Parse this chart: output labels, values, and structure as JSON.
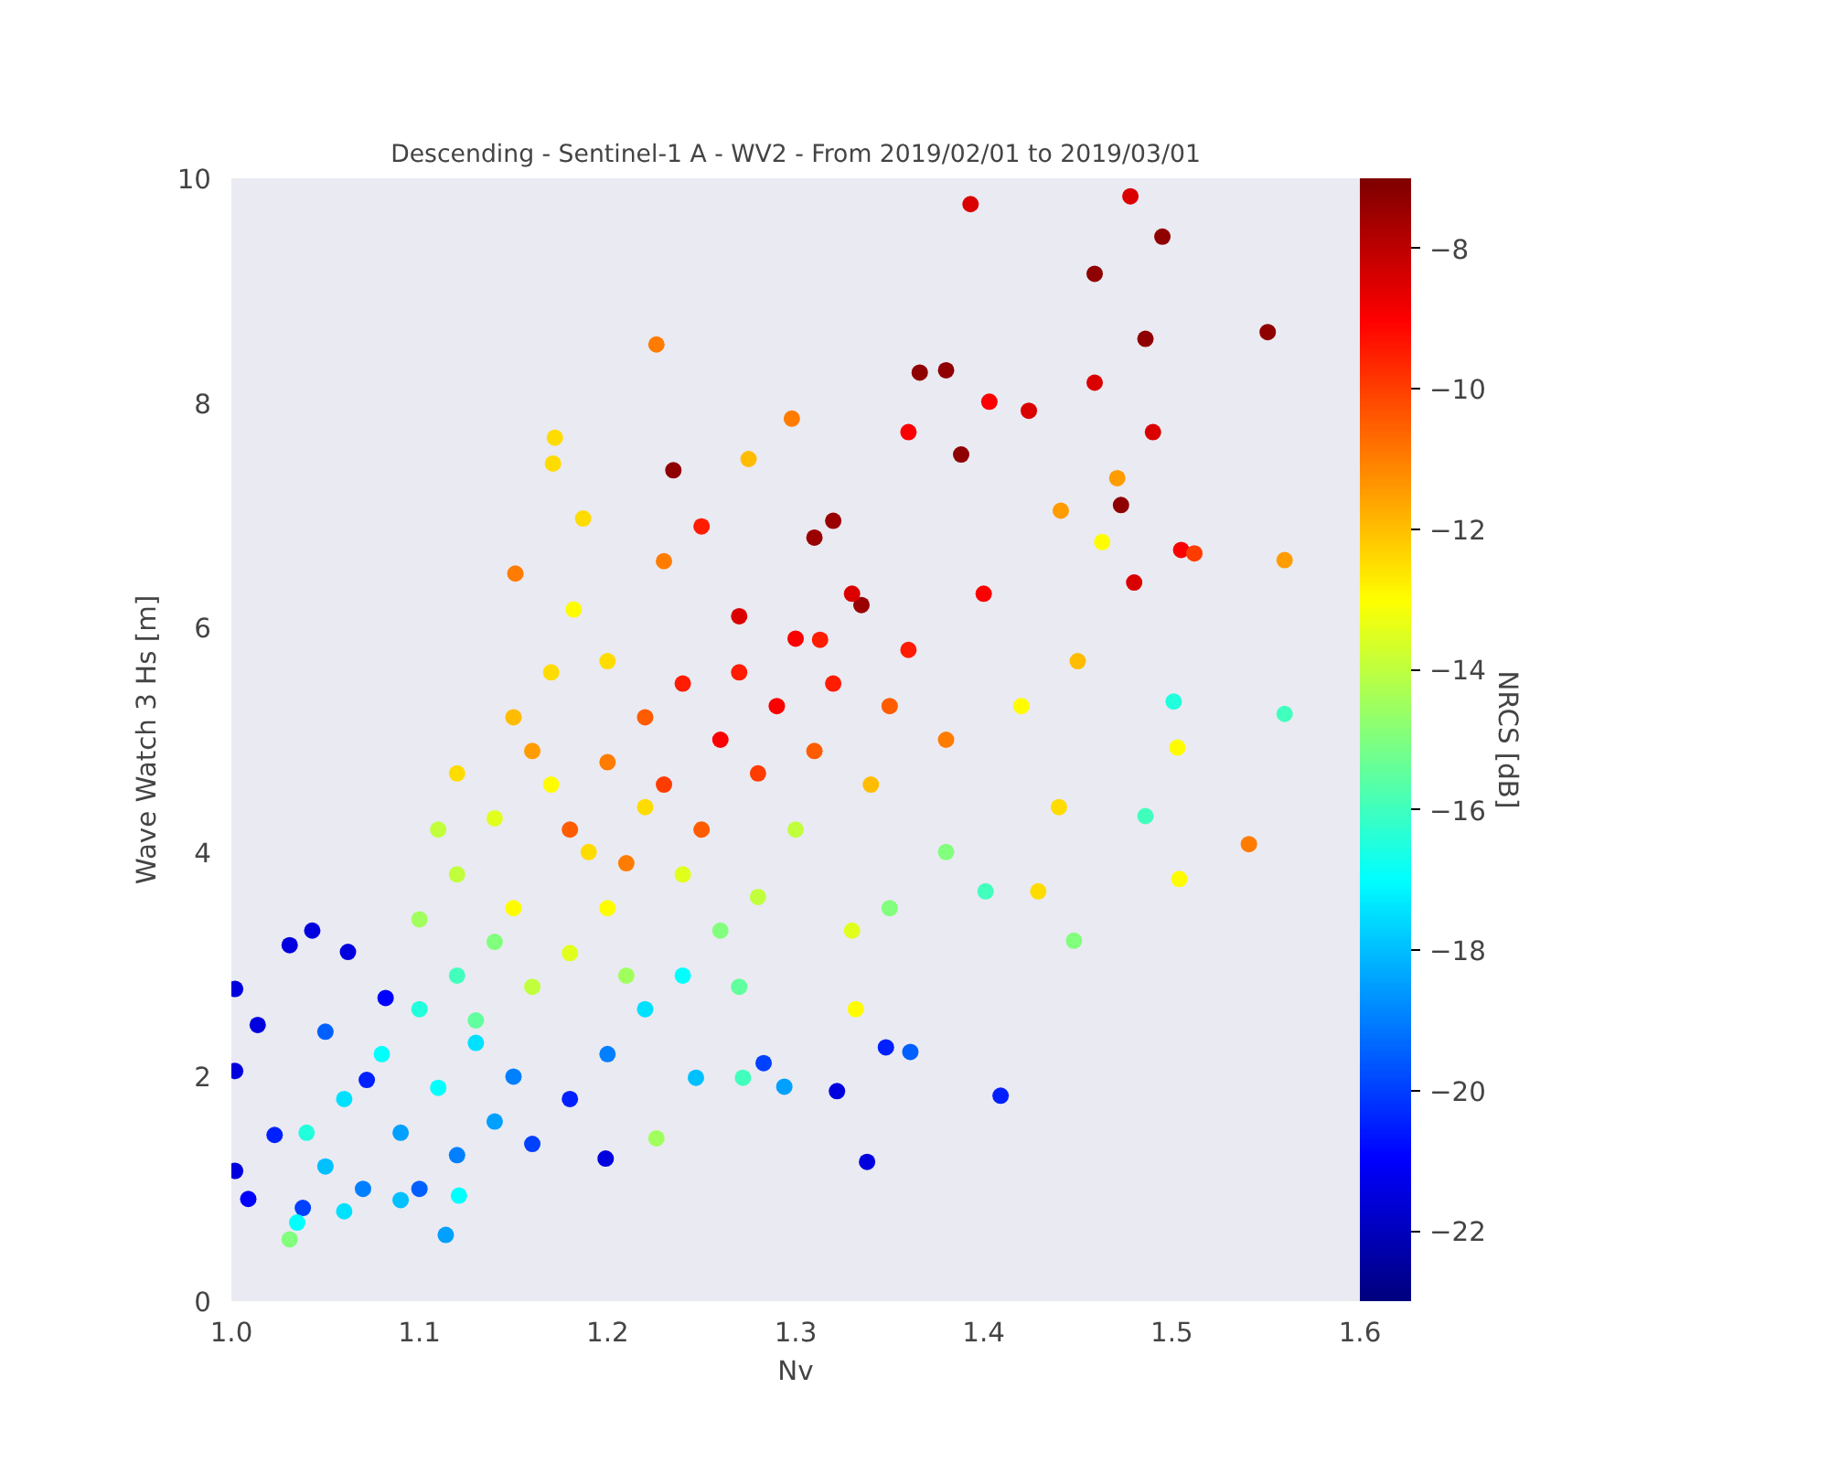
{
  "chart_data": {
    "type": "scatter",
    "title": "Descending - Sentinel-1 A - WV2 - From 2019/02/01 to 2019/03/01",
    "xlabel": "Nv",
    "ylabel": "Wave Watch 3 Hs [m]",
    "clabel": "NRCS [dB]",
    "xlim": [
      1.0,
      1.6
    ],
    "ylim": [
      0,
      10
    ],
    "xticks": [
      {
        "value": 1.0,
        "label": "1.0"
      },
      1.1,
      1.2,
      1.3,
      1.4,
      1.5,
      {
        "value": 1.6,
        "label": "1.6"
      }
    ],
    "yticks": [
      0,
      2,
      4,
      6,
      8,
      10
    ],
    "clim": [
      -23,
      -7
    ],
    "cticks": [
      {
        "value": -22,
        "label": "−22"
      },
      {
        "value": -20,
        "label": "−20"
      },
      {
        "value": -18,
        "label": "−18"
      },
      {
        "value": -16,
        "label": "−16"
      },
      {
        "value": -14,
        "label": "−14"
      },
      {
        "value": -12,
        "label": "−12"
      },
      {
        "value": -10,
        "label": "−10"
      },
      {
        "value": -8,
        "label": "−8"
      }
    ],
    "marker": "circle",
    "grid": false,
    "x": [
      1.393,
      1.478,
      1.495,
      1.459,
      1.486,
      1.551,
      1.226,
      1.459,
      1.49,
      1.366,
      1.38,
      1.403,
      1.388,
      1.424,
      1.473,
      1.235,
      1.172,
      1.171,
      1.298,
      1.36,
      1.275,
      1.471,
      1.441,
      1.505,
      1.512,
      1.56,
      1.187,
      1.151,
      1.23,
      1.182,
      1.313,
      1.463,
      1.335,
      1.541,
      1.504,
      1.486,
      1.448,
      1.409,
      1.338,
      1.361,
      1.348,
      1.322,
      1.294,
      1.283,
      1.272,
      1.247,
      1.199,
      1.226,
      1.121,
      1.114,
      1.031,
      1.503,
      1.429,
      1.401,
      1.332,
      1.56,
      1.501,
      1.002,
      1.002,
      1.002,
      1.014,
      1.031,
      1.043,
      1.062,
      1.009,
      1.023,
      1.038,
      1.072,
      1.082,
      1.05,
      1.06,
      1.07,
      1.08,
      1.09,
      1.1,
      1.1,
      1.11,
      1.12,
      1.12,
      1.13,
      1.14,
      1.15,
      1.16,
      1.18,
      1.2,
      1.22,
      1.24,
      1.06,
      1.04,
      1.035,
      1.09,
      1.05,
      1.14,
      1.1,
      1.12,
      1.14,
      1.15,
      1.16,
      1.17,
      1.18,
      1.19,
      1.2,
      1.21,
      1.13,
      1.22,
      1.24,
      1.26,
      1.28,
      1.3,
      1.27,
      1.12,
      1.15,
      1.17,
      1.2,
      1.11,
      1.2,
      1.22,
      1.23,
      1.24,
      1.25,
      1.26,
      1.27,
      1.28,
      1.29,
      1.3,
      1.31,
      1.32,
      1.33,
      1.35,
      1.34,
      1.36,
      1.38,
      1.4,
      1.42,
      1.45,
      1.48,
      1.44,
      1.38,
      1.33,
      1.35,
      1.31,
      1.32,
      1.27,
      1.25,
      1.18,
      1.21,
      1.16
    ],
    "values": [
      9.77,
      9.84,
      9.48,
      9.15,
      8.57,
      8.63,
      8.52,
      8.18,
      7.74,
      8.27,
      8.29,
      8.01,
      7.54,
      7.93,
      7.09,
      7.4,
      7.69,
      7.46,
      7.86,
      7.74,
      7.5,
      7.33,
      7.04,
      6.69,
      6.66,
      6.6,
      6.97,
      6.48,
      6.59,
      6.16,
      5.89,
      6.76,
      6.2,
      4.07,
      3.76,
      4.32,
      3.21,
      1.83,
      1.24,
      2.22,
      2.26,
      1.87,
      1.91,
      2.12,
      1.99,
      1.99,
      1.27,
      1.45,
      0.94,
      0.59,
      0.55,
      4.93,
      3.65,
      3.65,
      2.6,
      5.23,
      5.34,
      1.16,
      2.05,
      2.78,
      2.46,
      3.17,
      3.3,
      3.11,
      0.91,
      1.48,
      0.83,
      1.97,
      2.7,
      1.2,
      1.8,
      1.0,
      2.2,
      1.5,
      2.6,
      1.0,
      1.9,
      1.3,
      2.9,
      2.3,
      1.6,
      2.0,
      1.4,
      1.8,
      2.2,
      2.6,
      2.9,
      0.8,
      1.5,
      0.7,
      0.9,
      2.4,
      3.2,
      3.4,
      3.8,
      4.3,
      3.5,
      2.8,
      4.6,
      3.1,
      4.0,
      3.5,
      2.9,
      2.5,
      4.4,
      3.8,
      3.3,
      3.6,
      4.2,
      2.8,
      4.7,
      5.2,
      5.6,
      5.7,
      4.2,
      4.8,
      5.2,
      4.6,
      5.5,
      4.2,
      5.0,
      5.6,
      4.7,
      5.3,
      5.9,
      4.9,
      5.5,
      6.3,
      5.3,
      4.6,
      5.8,
      5.0,
      6.3,
      5.3,
      5.7,
      6.4,
      4.4,
      4.0,
      3.3,
      3.5,
      6.8,
      6.95,
      6.1,
      6.9,
      4.2,
      3.9,
      4.9
    ],
    "cvalues": [
      -8.5,
      -8.5,
      -7.3,
      -7.3,
      -7.3,
      -7.3,
      -11,
      -8.5,
      -8.5,
      -7.3,
      -7.3,
      -9,
      -7.3,
      -8.5,
      -7.3,
      -7.3,
      -12.5,
      -12.5,
      -11,
      -9,
      -12,
      -11.5,
      -11.5,
      -9,
      -10,
      -11.5,
      -12.5,
      -11,
      -11,
      -13,
      -9.5,
      -13,
      -7.5,
      -11,
      -13,
      -16,
      -15,
      -20.5,
      -21.5,
      -19.5,
      -20.5,
      -21.5,
      -18.5,
      -20,
      -16,
      -18,
      -21.5,
      -14.5,
      -17,
      -18.5,
      -15,
      -13,
      -12.5,
      -16,
      -13,
      -16,
      -16.5,
      -21.5,
      -21.5,
      -21.5,
      -21.5,
      -21.5,
      -21.5,
      -21.5,
      -21,
      -20.5,
      -20,
      -20.5,
      -21,
      -18,
      -17.5,
      -19,
      -17,
      -18.5,
      -16.5,
      -19.5,
      -17,
      -19,
      -16,
      -17.5,
      -18.5,
      -19,
      -20,
      -20.5,
      -19,
      -17.5,
      -17,
      -17.5,
      -16.5,
      -17,
      -18,
      -19.5,
      -15,
      -14.5,
      -14,
      -13.5,
      -13,
      -14,
      -13,
      -13.5,
      -12.5,
      -13,
      -14.5,
      -15.5,
      -12.5,
      -13.5,
      -15,
      -14,
      -14,
      -15.5,
      -12.5,
      -12,
      -12.5,
      -12.5,
      -14,
      -11,
      -10.5,
      -10,
      -9.5,
      -10.5,
      -9,
      -9.5,
      -10,
      -9,
      -9,
      -10.5,
      -9.5,
      -8.5,
      -10.5,
      -12,
      -9.5,
      -11,
      -9,
      -13,
      -12,
      -8.5,
      -12.5,
      -15,
      -13.5,
      -15,
      -7.5,
      -7.5,
      -8.5,
      -9.5,
      -10.5,
      -11,
      -11.5
    ]
  }
}
